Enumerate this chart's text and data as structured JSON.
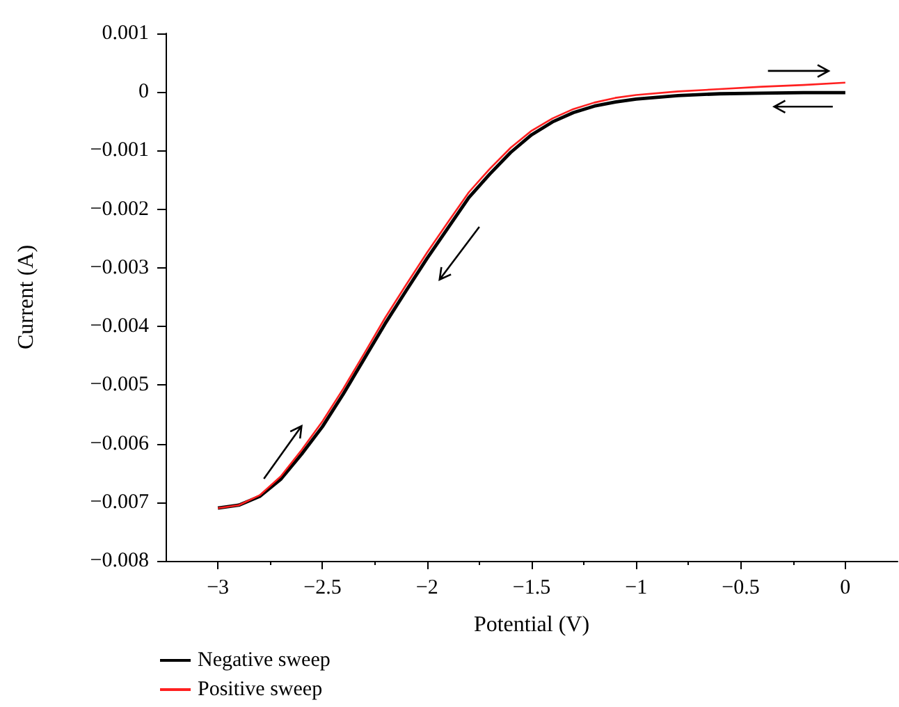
{
  "chart_data": {
    "type": "line",
    "xlabel": "Potential (V)",
    "ylabel": "Current (A)",
    "xlim": [
      -3.25,
      0.25
    ],
    "xticks": [
      {
        "value": -3,
        "label": "−3"
      },
      {
        "value": -2.5,
        "label": "−2.5"
      },
      {
        "value": -2,
        "label": "−2"
      },
      {
        "value": -1.5,
        "label": "−1.5"
      },
      {
        "value": -1,
        "label": "−1"
      },
      {
        "value": -0.5,
        "label": "−0.5"
      },
      0
    ],
    "ylim": [
      -0.008,
      0.001
    ],
    "yticks": [
      {
        "value": -0.008,
        "label": "−0.008"
      },
      {
        "value": -0.007,
        "label": "−0.007"
      },
      {
        "value": -0.006,
        "label": "−0.006"
      },
      {
        "value": -0.005,
        "label": "−0.005"
      },
      {
        "value": -0.004,
        "label": "−0.004"
      },
      {
        "value": -0.003,
        "label": "−0.003"
      },
      {
        "value": -0.002,
        "label": "−0.002"
      },
      {
        "value": -0.001,
        "label": "−0.001"
      },
      0,
      0.001
    ],
    "x": [
      -3,
      -2.9,
      -2.8,
      -2.7,
      -2.6,
      -2.5,
      -2.4,
      -2.3,
      -2.2,
      -2.1,
      -2,
      -1.9,
      -1.8,
      -1.7,
      -1.6,
      -1.5,
      -1.4,
      -1.3,
      -1.2,
      -1.1,
      -1,
      -0.8,
      -0.6,
      -0.4,
      -0.2,
      0
    ],
    "series": [
      {
        "name": "Negative sweep",
        "color": "#000000",
        "values": [
          -0.0071,
          -0.00705,
          -0.0069,
          -0.00661,
          -0.00618,
          -0.00571,
          -0.00515,
          -0.00455,
          -0.00395,
          -0.00339,
          -0.00284,
          -0.00232,
          -0.0018,
          -0.0014,
          -0.00103,
          -0.00073,
          -0.00051,
          -0.00035,
          -0.00024,
          -0.00017,
          -0.00012,
          -6e-05,
          -3e-05,
          -2e-05,
          -1e-05,
          -1e-05
        ]
      },
      {
        "name": "Positive sweep",
        "color": "#ff2020",
        "values": [
          -0.0071,
          -0.00705,
          -0.00688,
          -0.00656,
          -0.00611,
          -0.00562,
          -0.00506,
          -0.00446,
          -0.00385,
          -0.00329,
          -0.00274,
          -0.00222,
          -0.00171,
          -0.00131,
          -0.00095,
          -0.00066,
          -0.00045,
          -0.00029,
          -0.00018,
          -0.0001,
          -5e-05,
          1e-05,
          5e-05,
          9e-05,
          0.00012,
          0.00016
        ]
      }
    ],
    "legend": "bottom left",
    "grid": false,
    "marker": "none",
    "line_style": "solid"
  }
}
